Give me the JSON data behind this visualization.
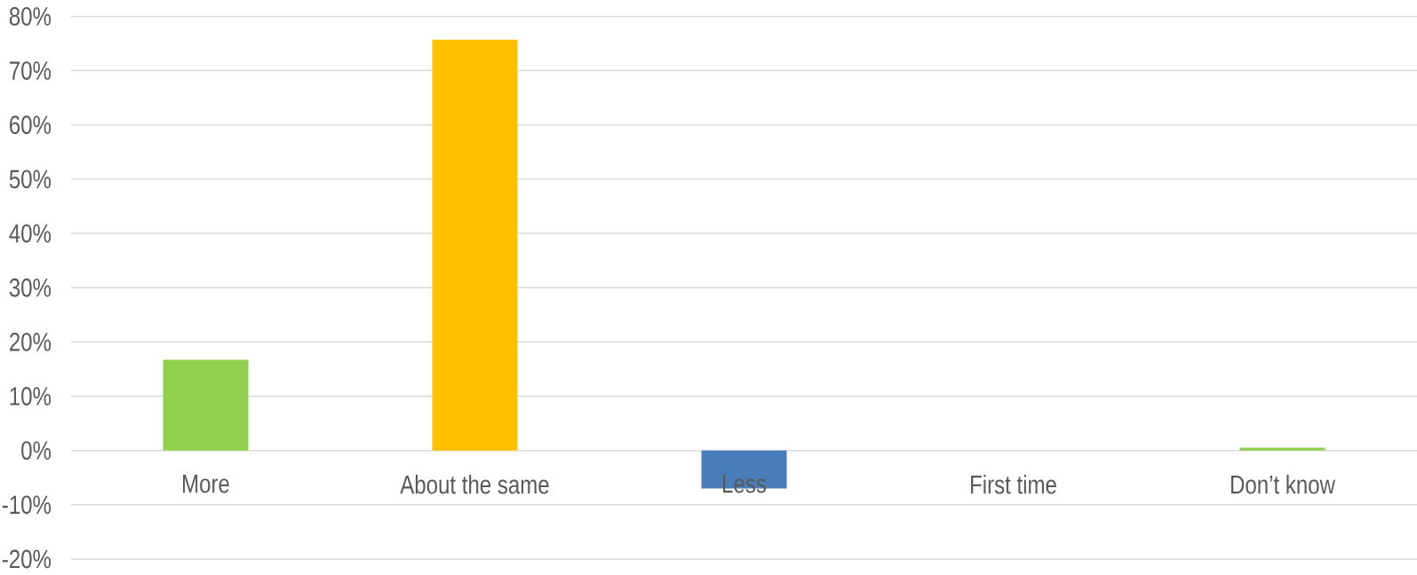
{
  "chart_data": {
    "type": "bar",
    "categories": [
      "More",
      "About the same",
      "Less",
      "First time",
      "Don’t know"
    ],
    "values": [
      16.7,
      75.7,
      -7.0,
      0,
      0.5
    ],
    "colors": [
      "#92d050",
      "#ffc000",
      "#4a7ebb",
      "#a5a5a5",
      "#92d050"
    ],
    "ylim": [
      -20,
      80
    ],
    "yticks": [
      {
        "value": -20,
        "label": "-20%"
      },
      {
        "value": -10,
        "label": "-10%"
      },
      {
        "value": 0,
        "label": "0%"
      },
      {
        "value": 10,
        "label": "10%"
      },
      {
        "value": 20,
        "label": "20%"
      },
      {
        "value": 30,
        "label": "30%"
      },
      {
        "value": 40,
        "label": "40%"
      },
      {
        "value": 50,
        "label": "50%"
      },
      {
        "value": 60,
        "label": "60%"
      },
      {
        "value": 70,
        "label": "70%"
      },
      {
        "value": 80,
        "label": "80%"
      }
    ],
    "grid": "y"
  }
}
